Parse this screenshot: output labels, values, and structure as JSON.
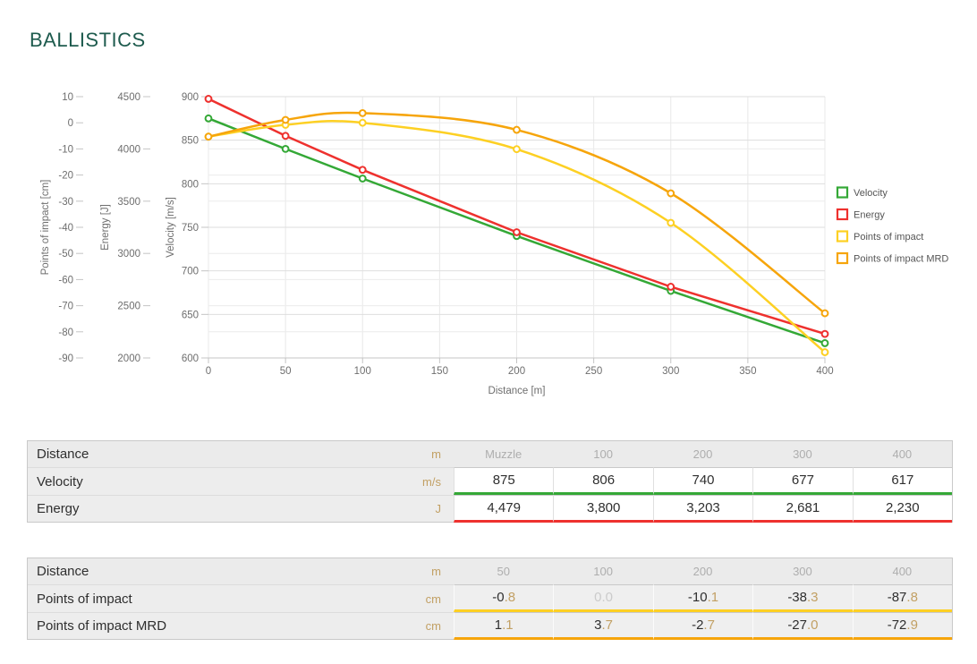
{
  "page": {
    "title": "BALLISTICS"
  },
  "colors": {
    "title": "#1e5b4e",
    "velocity": "#34a836",
    "energy": "#ee312e",
    "poi": "#fdd023",
    "poi_mrd": "#f6a50b",
    "unit_text": "#c2a064",
    "muted_text": "#cbcbcb",
    "axis_text": "#6e6e6e"
  },
  "chart_data": {
    "type": "line",
    "xlabel": "Distance [m]",
    "x_range": [
      0,
      400
    ],
    "x_ticks": [
      0,
      50,
      100,
      150,
      200,
      250,
      300,
      350,
      400
    ],
    "grid": true,
    "legend_position": "right",
    "axes": [
      {
        "id": "poi",
        "title": "Points of impact [cm]",
        "range": [
          -90,
          10
        ],
        "ticks": [
          10,
          0,
          -10,
          -20,
          -30,
          -40,
          -50,
          -60,
          -70,
          -80,
          -90
        ]
      },
      {
        "id": "energy",
        "title": "Energy [J]",
        "range": [
          2000,
          4500
        ],
        "ticks": [
          4500,
          4000,
          3500,
          3000,
          2500,
          2000
        ]
      },
      {
        "id": "velocity",
        "title": "Velocity [m/s]",
        "range": [
          600,
          900
        ],
        "ticks": [
          900,
          850,
          800,
          750,
          700,
          650,
          600
        ]
      }
    ],
    "series": [
      {
        "name": "Velocity",
        "axis": "velocity",
        "color": "#34a836",
        "smooth": false,
        "x": [
          0,
          50,
          100,
          200,
          300,
          400
        ],
        "values": [
          875,
          840,
          806,
          740,
          677,
          617
        ]
      },
      {
        "name": "Energy",
        "axis": "energy",
        "color": "#ee312e",
        "smooth": false,
        "x": [
          0,
          50,
          100,
          200,
          300,
          400
        ],
        "values": [
          4479,
          4125,
          3800,
          3203,
          2681,
          2230
        ]
      },
      {
        "name": "Points of impact",
        "axis": "poi",
        "color": "#fdd023",
        "smooth": true,
        "x": [
          0,
          50,
          100,
          200,
          300,
          400
        ],
        "values": [
          -5.3,
          -0.8,
          0.0,
          -10.1,
          -38.3,
          -87.8
        ]
      },
      {
        "name": "Points of impact MRD",
        "axis": "poi",
        "color": "#f6a50b",
        "smooth": true,
        "x": [
          0,
          50,
          100,
          200,
          300,
          400
        ],
        "values": [
          -5.3,
          1.1,
          3.7,
          -2.7,
          -27.0,
          -72.9
        ]
      }
    ],
    "legend": [
      "Velocity",
      "Energy",
      "Points of impact",
      "Points of impact MRD"
    ]
  },
  "tables": [
    {
      "id": "velocity-energy",
      "split_decimal": false,
      "header": {
        "label": "Distance",
        "unit": "m",
        "cols": [
          "Muzzle",
          "100",
          "200",
          "300",
          "400"
        ]
      },
      "rows": [
        {
          "label": "Velocity",
          "unit": "m/s",
          "color": "#34a836",
          "cells": [
            {
              "t": "875"
            },
            {
              "t": "806"
            },
            {
              "t": "740"
            },
            {
              "t": "677"
            },
            {
              "t": "617"
            }
          ]
        },
        {
          "label": "Energy",
          "unit": "J",
          "color": "#ee312e",
          "cells": [
            {
              "t": "4,479"
            },
            {
              "t": "3,800"
            },
            {
              "t": "3,203"
            },
            {
              "t": "2,681"
            },
            {
              "t": "2,230"
            }
          ]
        }
      ]
    },
    {
      "id": "points-of-impact",
      "split_decimal": true,
      "header": {
        "label": "Distance",
        "unit": "m",
        "cols": [
          "50",
          "100",
          "200",
          "300",
          "400"
        ]
      },
      "rows": [
        {
          "label": "Points of impact",
          "unit": "cm",
          "color": "#fdd023",
          "cells": [
            {
              "t": "-0.8"
            },
            {
              "t": "0.0",
              "muted": true
            },
            {
              "t": "-10.1"
            },
            {
              "t": "-38.3"
            },
            {
              "t": "-87.8"
            }
          ]
        },
        {
          "label": "Points of impact MRD",
          "unit": "cm",
          "color": "#f6a50b",
          "cells": [
            {
              "t": "1.1"
            },
            {
              "t": "3.7"
            },
            {
              "t": "-2.7"
            },
            {
              "t": "-27.0"
            },
            {
              "t": "-72.9"
            }
          ]
        }
      ]
    }
  ]
}
